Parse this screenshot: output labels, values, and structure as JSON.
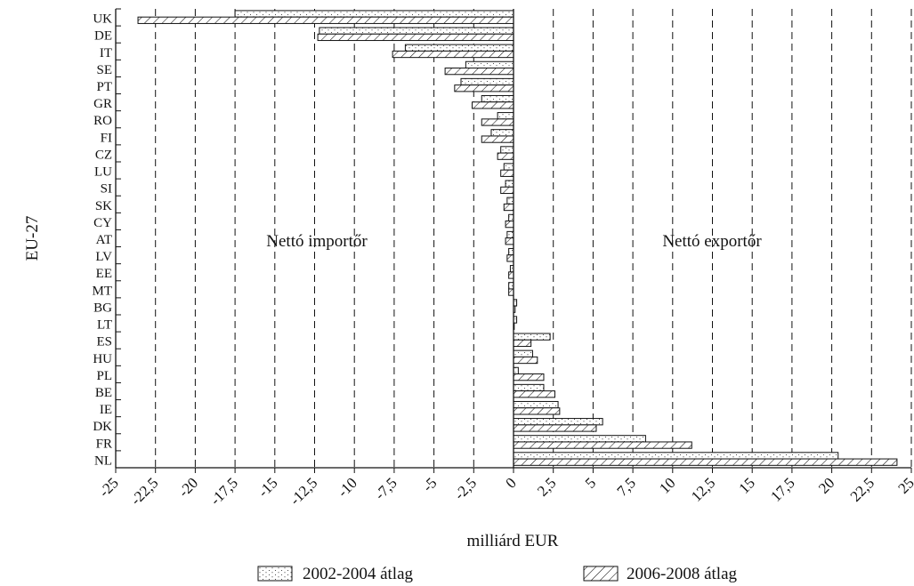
{
  "chart_data": {
    "type": "bar",
    "orientation": "horizontal",
    "categories": [
      "UK",
      "DE",
      "IT",
      "SE",
      "PT",
      "GR",
      "RO",
      "FI",
      "CZ",
      "LU",
      "SI",
      "SK",
      "CY",
      "AT",
      "LV",
      "EE",
      "MT",
      "BG",
      "LT",
      "ES",
      "HU",
      "PL",
      "BE",
      "IE",
      "DK",
      "FR",
      "NL"
    ],
    "series": [
      {
        "name": "2002-2004 átlag",
        "pattern": "dots",
        "values": [
          -17.5,
          -12.2,
          -6.8,
          -3.0,
          -3.3,
          -2.0,
          -1.0,
          -1.4,
          -0.8,
          -0.6,
          -0.5,
          -0.4,
          -0.3,
          -0.4,
          -0.3,
          -0.2,
          -0.3,
          0.2,
          0.2,
          2.3,
          1.2,
          0.3,
          1.9,
          2.8,
          5.6,
          8.3,
          20.4
        ]
      },
      {
        "name": "2006-2008 átlag",
        "pattern": "hatch",
        "values": [
          -23.6,
          -12.3,
          -7.6,
          -4.3,
          -3.7,
          -2.6,
          -2.0,
          -2.0,
          -1.0,
          -0.8,
          -0.8,
          -0.6,
          -0.5,
          -0.5,
          -0.4,
          -0.3,
          -0.3,
          0.1,
          0.0,
          1.1,
          1.5,
          1.9,
          2.6,
          2.9,
          5.2,
          11.2,
          24.1
        ]
      }
    ],
    "xlim": [
      -25,
      25
    ],
    "xticks": [
      -25,
      -22.5,
      -20,
      -17.5,
      -15,
      -12.5,
      -10,
      -7.5,
      -5,
      -2.5,
      0,
      2.5,
      5,
      7.5,
      10,
      12.5,
      15,
      17.5,
      20,
      22.5,
      25
    ],
    "xtick_labels": [
      "-25",
      "-22,5",
      "-20",
      "-17,5",
      "-15",
      "-12,5",
      "-10",
      "-7,5",
      "-5",
      "-2,5",
      "0",
      "2,5",
      "5",
      "7,5",
      "10",
      "12,5",
      "15",
      "17,5",
      "20",
      "22,5",
      "25"
    ],
    "xlabel": "milliárd EUR",
    "ylabel": "EU-27",
    "annotations": [
      "Nettó importőr",
      "Nettó exportőr"
    ],
    "grid": "vertical dashed",
    "legend": "bottom",
    "colors": {
      "stroke": "#111111",
      "background": "#ffffff"
    }
  }
}
